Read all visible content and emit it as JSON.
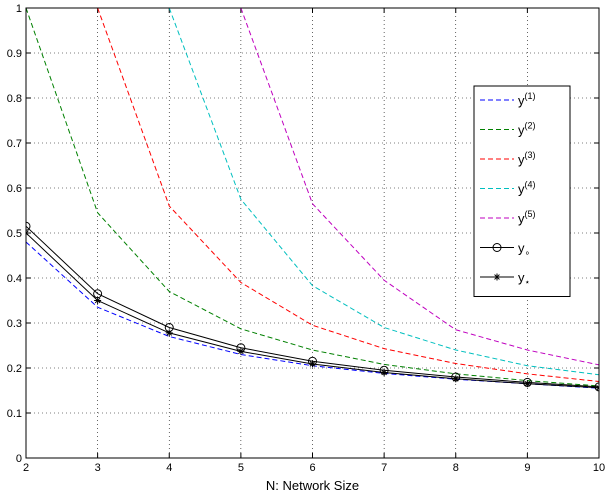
{
  "chart_data": {
    "type": "line",
    "title": "",
    "xlabel": "N: Network Size",
    "ylabel": "",
    "xlim": [
      2,
      10
    ],
    "ylim": [
      0,
      1
    ],
    "x_ticks": [
      2,
      3,
      4,
      5,
      6,
      7,
      8,
      9,
      10
    ],
    "y_ticks": [
      0,
      0.1,
      0.2,
      0.3,
      0.4,
      0.5,
      0.6,
      0.7,
      0.8,
      0.9,
      1
    ],
    "x_tick_labels": [
      "2",
      "3",
      "4",
      "5",
      "6",
      "7",
      "8",
      "9",
      "10"
    ],
    "y_tick_labels": [
      "0",
      "0.1",
      "0.2",
      "0.3",
      "0.4",
      "0.5",
      "0.6",
      "0.7",
      "0.8",
      "0.9",
      "1"
    ],
    "grid": true,
    "legend_position": "right",
    "series": [
      {
        "name": "y",
        "sup": "(1)",
        "color": "#0000ff",
        "style": "dashed",
        "marker": "none",
        "x": [
          2,
          3,
          4,
          5,
          6,
          7,
          8,
          9,
          10
        ],
        "y": [
          0.48,
          0.335,
          0.27,
          0.23,
          0.205,
          0.188,
          0.175,
          0.165,
          0.155
        ]
      },
      {
        "name": "y",
        "sup": "(2)",
        "color": "#008000",
        "style": "dashed",
        "marker": "none",
        "x": [
          2,
          3,
          4,
          5,
          6,
          7,
          8,
          9,
          10
        ],
        "y": [
          1.0,
          0.545,
          0.37,
          0.287,
          0.24,
          0.208,
          0.187,
          0.172,
          0.16
        ]
      },
      {
        "name": "y",
        "sup": "(3)",
        "color": "#ff0000",
        "style": "dashed",
        "marker": "none",
        "x": [
          3,
          4,
          5,
          6,
          7,
          8,
          9,
          10
        ],
        "y": [
          1.0,
          0.56,
          0.39,
          0.295,
          0.243,
          0.21,
          0.187,
          0.17
        ]
      },
      {
        "name": "y",
        "sup": "(4)",
        "color": "#00bfbf",
        "style": "dashed",
        "marker": "none",
        "x": [
          4,
          5,
          6,
          7,
          8,
          9,
          10
        ],
        "y": [
          1.0,
          0.575,
          0.383,
          0.29,
          0.24,
          0.205,
          0.185
        ]
      },
      {
        "name": "y",
        "sup": "(5)",
        "color": "#bf00bf",
        "style": "dashed",
        "marker": "none",
        "x": [
          5,
          6,
          7,
          8,
          9,
          10
        ],
        "y": [
          1.0,
          0.565,
          0.395,
          0.285,
          0.24,
          0.207
        ]
      },
      {
        "name": "y",
        "sub": "∘",
        "color": "#000000",
        "style": "solid",
        "marker": "circle",
        "x": [
          2,
          3,
          4,
          5,
          6,
          7,
          8,
          9,
          10
        ],
        "y": [
          0.515,
          0.365,
          0.29,
          0.245,
          0.215,
          0.195,
          0.18,
          0.168,
          0.158
        ]
      },
      {
        "name": "y",
        "sub": "⋆",
        "color": "#000000",
        "style": "solid",
        "marker": "star",
        "x": [
          2,
          3,
          4,
          5,
          6,
          7,
          8,
          9,
          10
        ],
        "y": [
          0.5,
          0.35,
          0.278,
          0.237,
          0.209,
          0.19,
          0.176,
          0.165,
          0.156
        ]
      }
    ]
  }
}
